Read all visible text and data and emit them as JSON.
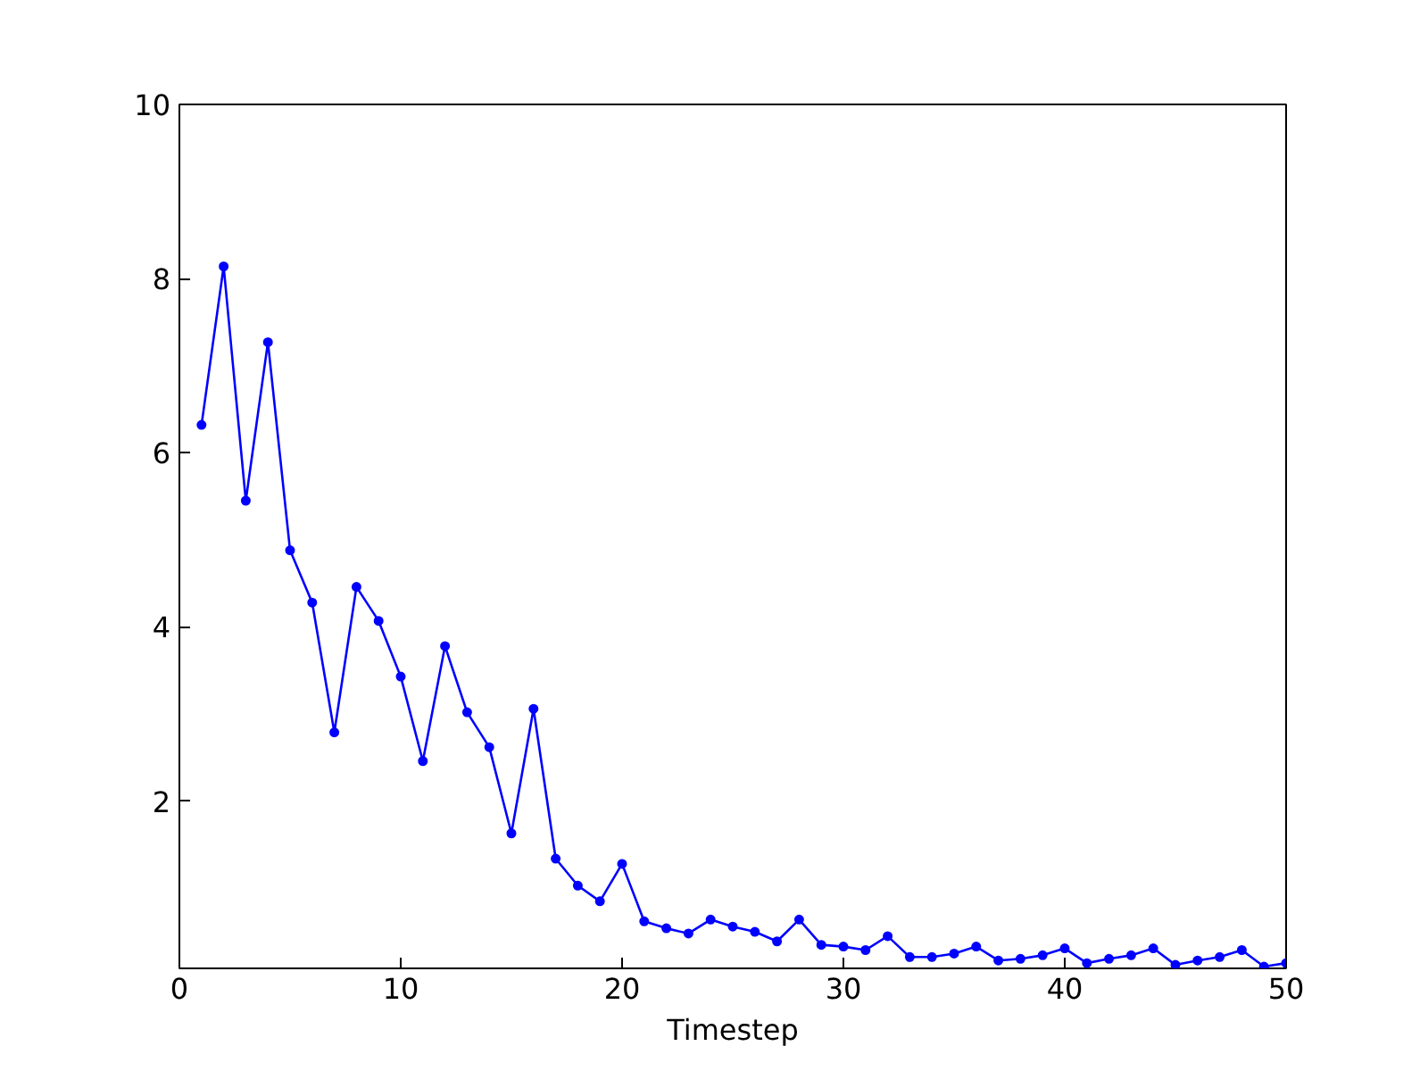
{
  "chart_data": {
    "type": "line",
    "xlabel": "Timestep",
    "x": [
      1,
      2,
      3,
      4,
      5,
      6,
      7,
      8,
      9,
      10,
      11,
      12,
      13,
      14,
      15,
      16,
      17,
      18,
      19,
      20,
      21,
      22,
      23,
      24,
      25,
      26,
      27,
      28,
      29,
      30,
      31,
      32,
      33,
      34,
      35,
      36,
      37,
      38,
      39,
      40,
      41,
      42,
      43,
      44,
      45,
      46,
      47,
      48,
      49,
      50
    ],
    "series": [
      {
        "color": "#0000ff",
        "values": [
          6.32,
          8.14,
          5.45,
          7.27,
          4.88,
          4.28,
          2.79,
          4.46,
          4.07,
          3.43,
          2.46,
          3.78,
          3.02,
          2.62,
          1.63,
          3.06,
          1.34,
          1.03,
          0.85,
          1.28,
          0.62,
          0.54,
          0.48,
          0.64,
          0.56,
          0.5,
          0.39,
          0.64,
          0.35,
          0.33,
          0.29,
          0.45,
          0.21,
          0.21,
          0.25,
          0.33,
          0.17,
          0.19,
          0.23,
          0.31,
          0.14,
          0.19,
          0.23,
          0.31,
          0.12,
          0.17,
          0.21,
          0.29,
          0.1,
          0.14
        ]
      }
    ],
    "xlim": [
      0,
      50
    ],
    "ylim": [
      0.08,
      10
    ],
    "xticks": [
      0,
      10,
      20,
      30,
      40,
      50
    ],
    "yticks": [
      2,
      4,
      6,
      8,
      10
    ],
    "grid": false,
    "marker": "circle",
    "line_style": "solid"
  }
}
